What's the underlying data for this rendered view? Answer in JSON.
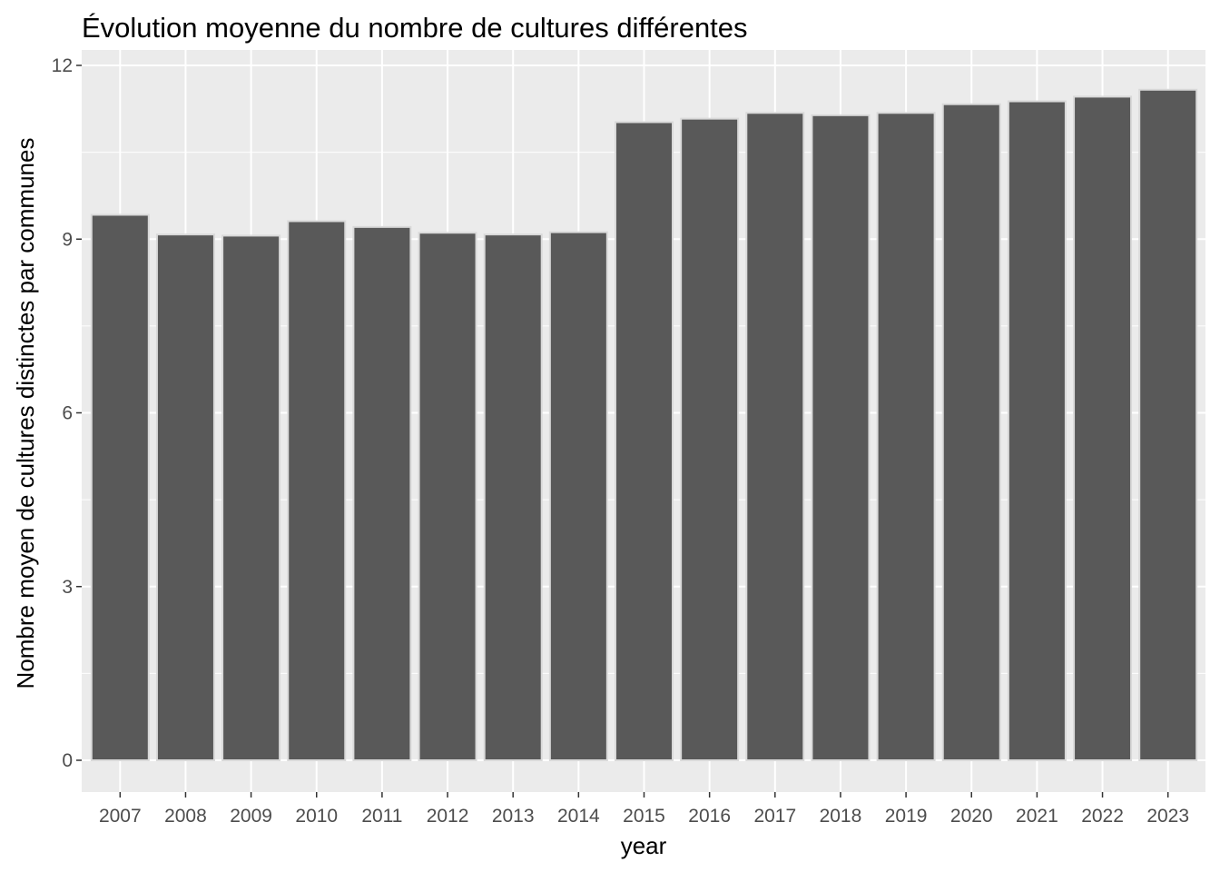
{
  "chart_data": {
    "type": "bar",
    "title": "Évolution moyenne du nombre de cultures différentes",
    "xlabel": "year",
    "ylabel": "Nombre moyen de cultures distinctes par communes",
    "categories": [
      "2007",
      "2008",
      "2009",
      "2010",
      "2011",
      "2012",
      "2013",
      "2014",
      "2015",
      "2016",
      "2017",
      "2018",
      "2019",
      "2020",
      "2021",
      "2022",
      "2023"
    ],
    "values": [
      9.42,
      9.08,
      9.06,
      9.31,
      9.21,
      9.11,
      9.08,
      9.12,
      11.02,
      11.08,
      11.18,
      11.14,
      11.18,
      11.33,
      11.38,
      11.46,
      11.58
    ],
    "ylim": [
      0,
      12
    ],
    "yticks": [
      0,
      3,
      6,
      9,
      12
    ],
    "grid": true,
    "legend": "none",
    "colors": {
      "panel_background": "#ebebeb",
      "grid_major": "#ffffff",
      "bar_fill": "#595959",
      "bar_outline": "#d9d9d9"
    }
  }
}
